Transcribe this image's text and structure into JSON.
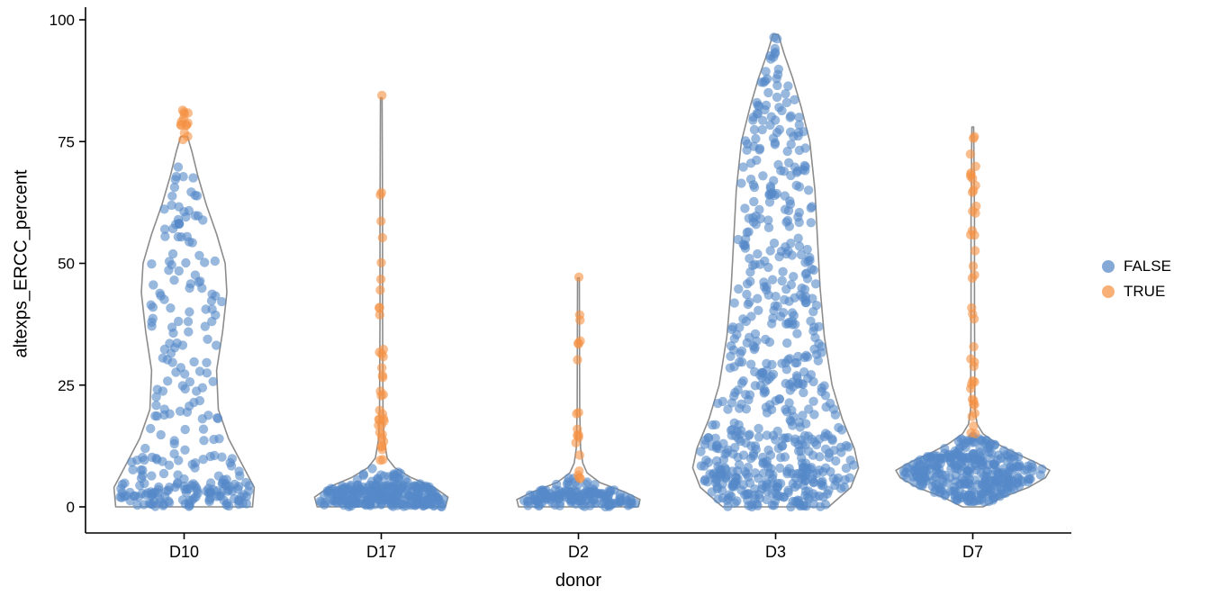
{
  "figure": {
    "background": "#ffffff"
  },
  "chart_data": {
    "type": "scatter",
    "subtype": "violin-with-jittered-points",
    "title": "",
    "xlabel": "donor",
    "ylabel": "altexps_ERCC_percent",
    "ylim": [
      0,
      100
    ],
    "yticks": [
      0,
      25,
      50,
      75,
      100
    ],
    "categories": [
      "D10",
      "D17",
      "D2",
      "D3",
      "D7"
    ],
    "legend": {
      "position": "right",
      "entries": [
        {
          "label": "FALSE",
          "color": "#5588C8"
        },
        {
          "label": "TRUE",
          "color": "#F59142"
        }
      ]
    },
    "style": {
      "violin_stroke": "#8C8C8C",
      "violin_fill": "#FFFFFF",
      "axis_color": "#000000",
      "point_radius": 5.2,
      "point_opacity": 0.6,
      "tick_font_size": 17,
      "grid": false
    },
    "groups": [
      {
        "category": "D10",
        "violin_profile": [
          [
            0,
            0.8
          ],
          [
            4,
            0.82
          ],
          [
            8,
            0.7
          ],
          [
            14,
            0.52
          ],
          [
            20,
            0.4
          ],
          [
            28,
            0.38
          ],
          [
            36,
            0.45
          ],
          [
            44,
            0.5
          ],
          [
            50,
            0.48
          ],
          [
            56,
            0.38
          ],
          [
            62,
            0.26
          ],
          [
            68,
            0.16
          ],
          [
            73,
            0.09
          ],
          [
            76,
            0.04
          ]
        ],
        "points": {
          "FALSE": [
            {
              "n": 110,
              "y": [
                0,
                5
              ],
              "spread": "violin"
            },
            {
              "n": 35,
              "y": [
                5,
                11
              ],
              "spread": "violin"
            },
            {
              "n": 26,
              "y": [
                11,
                22
              ],
              "spread": "violin"
            },
            {
              "n": 30,
              "y": [
                22,
                36
              ],
              "spread": "violin"
            },
            {
              "n": 40,
              "y": [
                36,
                52
              ],
              "spread": "violin"
            },
            {
              "n": 22,
              "y": [
                52,
                62
              ],
              "spread": "violin"
            },
            {
              "n": 10,
              "y": [
                62,
                70
              ],
              "spread": "violin"
            }
          ],
          "TRUE": [
            {
              "n": 3,
              "y": [
                73.5,
                77
              ],
              "spread": 0.05
            },
            {
              "n": 11,
              "y": [
                78,
                81.5
              ],
              "spread": 0.045
            }
          ]
        }
      },
      {
        "category": "D17",
        "violin_profile": [
          [
            0,
            0.75
          ],
          [
            2,
            0.78
          ],
          [
            4,
            0.62
          ],
          [
            6,
            0.35
          ],
          [
            8,
            0.16
          ],
          [
            10,
            0.07
          ],
          [
            14,
            0.03
          ],
          [
            20,
            0.02
          ],
          [
            40,
            0.015
          ],
          [
            60,
            0.015
          ],
          [
            84,
            0.01
          ]
        ],
        "points": {
          "FALSE": [
            {
              "n": 250,
              "y": [
                0,
                4.5
              ],
              "spread": "violin"
            },
            {
              "n": 25,
              "y": [
                4.5,
                8
              ],
              "spread": "violin"
            }
          ],
          "TRUE": [
            {
              "n": 5,
              "y": [
                9,
                13
              ],
              "spread": 0.03
            },
            {
              "n": 12,
              "y": [
                13,
                20
              ],
              "spread": 0.035
            },
            {
              "n": 3,
              "y": [
                21,
                25
              ],
              "spread": 0.03
            },
            {
              "n": 7,
              "y": [
                26,
                33
              ],
              "spread": 0.03
            },
            {
              "n": 3,
              "y": [
                36,
                41
              ],
              "spread": 0.025
            },
            {
              "n": 2,
              "y": [
                44,
                47
              ],
              "spread": 0.02
            },
            {
              "n": 1,
              "y": [
                50,
                51
              ],
              "spread": 0.02
            },
            {
              "n": 1,
              "y": [
                55,
                56
              ],
              "spread": 0.02
            },
            {
              "n": 1,
              "y": [
                58,
                59
              ],
              "spread": 0.02
            },
            {
              "n": 2,
              "y": [
                63,
                66
              ],
              "spread": 0.02
            },
            {
              "n": 1,
              "y": [
                84,
                84.5
              ],
              "spread": 0.01
            }
          ]
        }
      },
      {
        "category": "D2",
        "violin_profile": [
          [
            0,
            0.7
          ],
          [
            1.5,
            0.72
          ],
          [
            3,
            0.55
          ],
          [
            5,
            0.25
          ],
          [
            7,
            0.1
          ],
          [
            9,
            0.05
          ],
          [
            12,
            0.025
          ],
          [
            20,
            0.015
          ],
          [
            47,
            0.01
          ]
        ],
        "points": {
          "FALSE": [
            {
              "n": 135,
              "y": [
                0,
                3.5
              ],
              "spread": "violin"
            },
            {
              "n": 12,
              "y": [
                3.5,
                6
              ],
              "spread": "violin"
            }
          ],
          "TRUE": [
            {
              "n": 4,
              "y": [
                5,
                9
              ],
              "spread": 0.03
            },
            {
              "n": 6,
              "y": [
                10,
                16
              ],
              "spread": 0.03
            },
            {
              "n": 2,
              "y": [
                19,
                22
              ],
              "spread": 0.025
            },
            {
              "n": 4,
              "y": [
                30,
                36
              ],
              "spread": 0.03
            },
            {
              "n": 2,
              "y": [
                38,
                41
              ],
              "spread": 0.02
            },
            {
              "n": 1,
              "y": [
                47,
                47.5
              ],
              "spread": 0.015
            }
          ]
        }
      },
      {
        "category": "D3",
        "violin_profile": [
          [
            0,
            0.62
          ],
          [
            4,
            0.88
          ],
          [
            8,
            0.97
          ],
          [
            12,
            0.92
          ],
          [
            18,
            0.78
          ],
          [
            25,
            0.66
          ],
          [
            35,
            0.57
          ],
          [
            45,
            0.52
          ],
          [
            55,
            0.49
          ],
          [
            65,
            0.46
          ],
          [
            75,
            0.4
          ],
          [
            82,
            0.3
          ],
          [
            88,
            0.2
          ],
          [
            93,
            0.1
          ],
          [
            97,
            0.03
          ]
        ],
        "points": {
          "FALSE": [
            {
              "n": 150,
              "y": [
                0,
                7
              ],
              "spread": "violin"
            },
            {
              "n": 120,
              "y": [
                7,
                15
              ],
              "spread": "violin"
            },
            {
              "n": 90,
              "y": [
                15,
                28
              ],
              "spread": "violin"
            },
            {
              "n": 75,
              "y": [
                28,
                42
              ],
              "spread": "violin"
            },
            {
              "n": 65,
              "y": [
                42,
                56
              ],
              "spread": "violin"
            },
            {
              "n": 55,
              "y": [
                56,
                70
              ],
              "spread": "violin"
            },
            {
              "n": 42,
              "y": [
                70,
                82
              ],
              "spread": "violin"
            },
            {
              "n": 20,
              "y": [
                82,
                90
              ],
              "spread": "violin"
            },
            {
              "n": 6,
              "y": [
                90,
                95
              ],
              "spread": "violin"
            },
            {
              "n": 2,
              "y": [
                95.5,
                97
              ],
              "spread": 0.04
            }
          ],
          "TRUE": []
        }
      },
      {
        "category": "D7",
        "violin_profile": [
          [
            0,
            0.12
          ],
          [
            2,
            0.35
          ],
          [
            4,
            0.65
          ],
          [
            6,
            0.85
          ],
          [
            7.5,
            0.9
          ],
          [
            9,
            0.75
          ],
          [
            11,
            0.5
          ],
          [
            13,
            0.28
          ],
          [
            15,
            0.12
          ],
          [
            17,
            0.05
          ],
          [
            20,
            0.025
          ],
          [
            40,
            0.02
          ],
          [
            60,
            0.02
          ],
          [
            78,
            0.01
          ]
        ],
        "points": {
          "FALSE": [
            {
              "n": 60,
              "y": [
                1,
                4
              ],
              "spread": "violin"
            },
            {
              "n": 230,
              "y": [
                4,
                11
              ],
              "spread": "violin"
            },
            {
              "n": 35,
              "y": [
                11,
                14.5
              ],
              "spread": "violin"
            }
          ],
          "TRUE": [
            {
              "n": 4,
              "y": [
                15,
                19
              ],
              "spread": 0.035
            },
            {
              "n": 9,
              "y": [
                19,
                26
              ],
              "spread": 0.035
            },
            {
              "n": 4,
              "y": [
                28,
                34
              ],
              "spread": 0.03
            },
            {
              "n": 3,
              "y": [
                36,
                42
              ],
              "spread": 0.025
            },
            {
              "n": 3,
              "y": [
                44,
                50
              ],
              "spread": 0.025
            },
            {
              "n": 4,
              "y": [
                52,
                58
              ],
              "spread": 0.03
            },
            {
              "n": 11,
              "y": [
                60,
                70
              ],
              "spread": 0.04
            },
            {
              "n": 3,
              "y": [
                72,
                78
              ],
              "spread": 0.03
            }
          ]
        }
      }
    ]
  }
}
